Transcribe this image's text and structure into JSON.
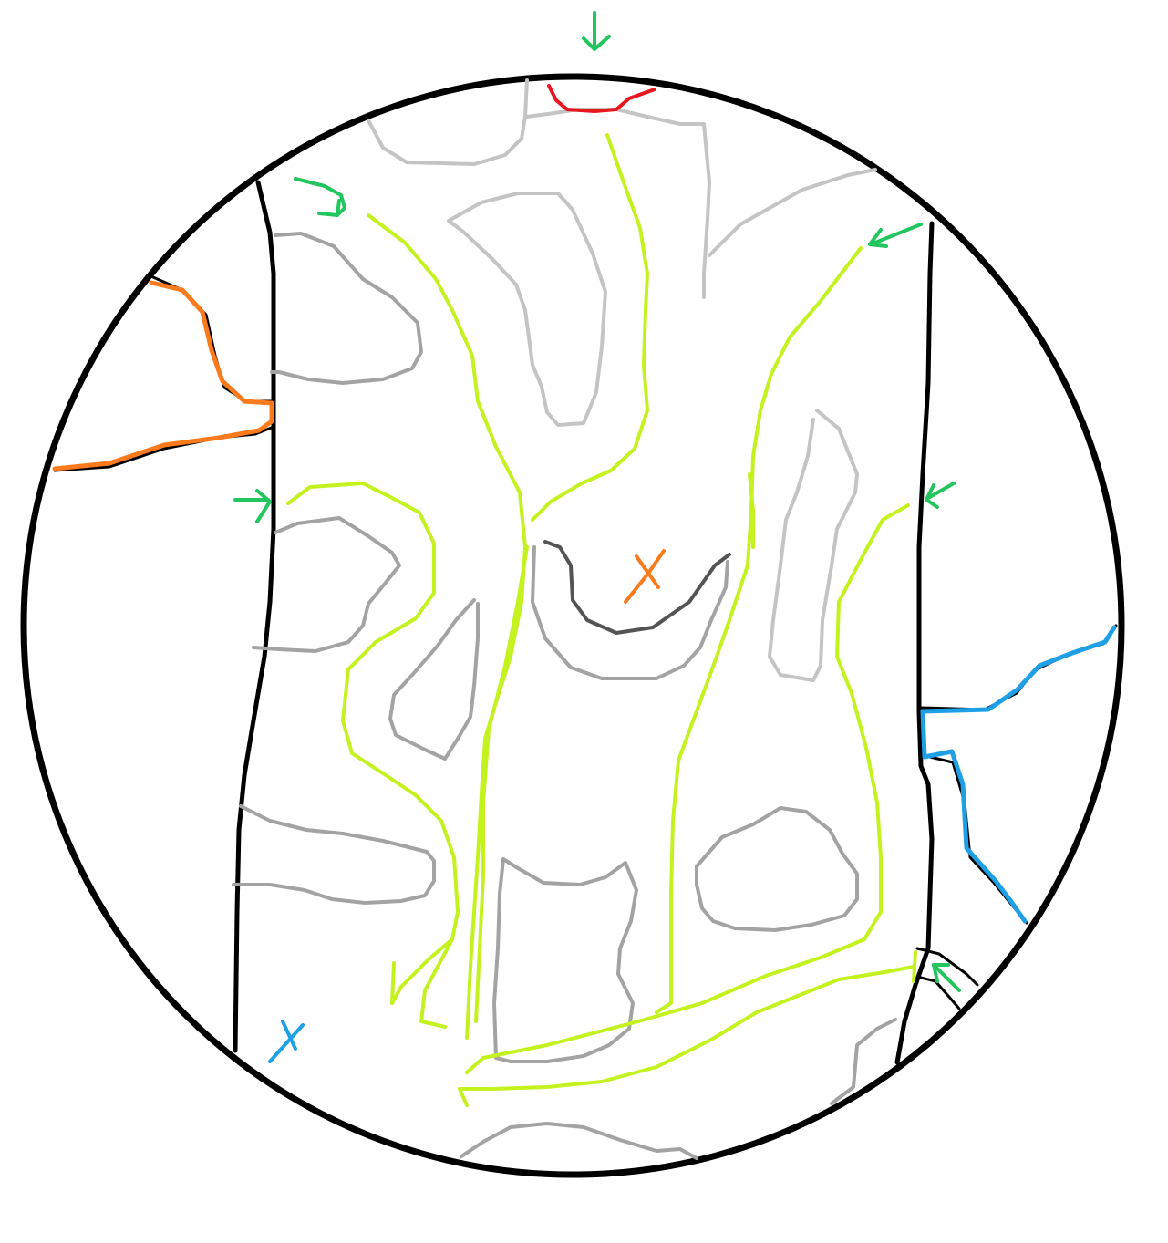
{
  "colors": {
    "background": "#ffffff",
    "outline": "#000000",
    "obstacle_light": "#c4c4c4",
    "obstacle_mid": "#a3a3a3",
    "obstacle_dark": "#545454",
    "flow_path": "#c4f21e",
    "entry_arrow": "#22c55e",
    "red_boundary": "#e8171f",
    "orange_boundary": "#fb7a1c",
    "blue_boundary": "#1e9fe6",
    "orange_marker": "#fb7a1c",
    "blue_marker": "#1e9fe6"
  },
  "markers": {
    "orange": {
      "label": "X"
    },
    "blue": {
      "label": "X"
    }
  },
  "icons": {
    "entry": "arrow-icon",
    "target": "x-marker-icon"
  }
}
